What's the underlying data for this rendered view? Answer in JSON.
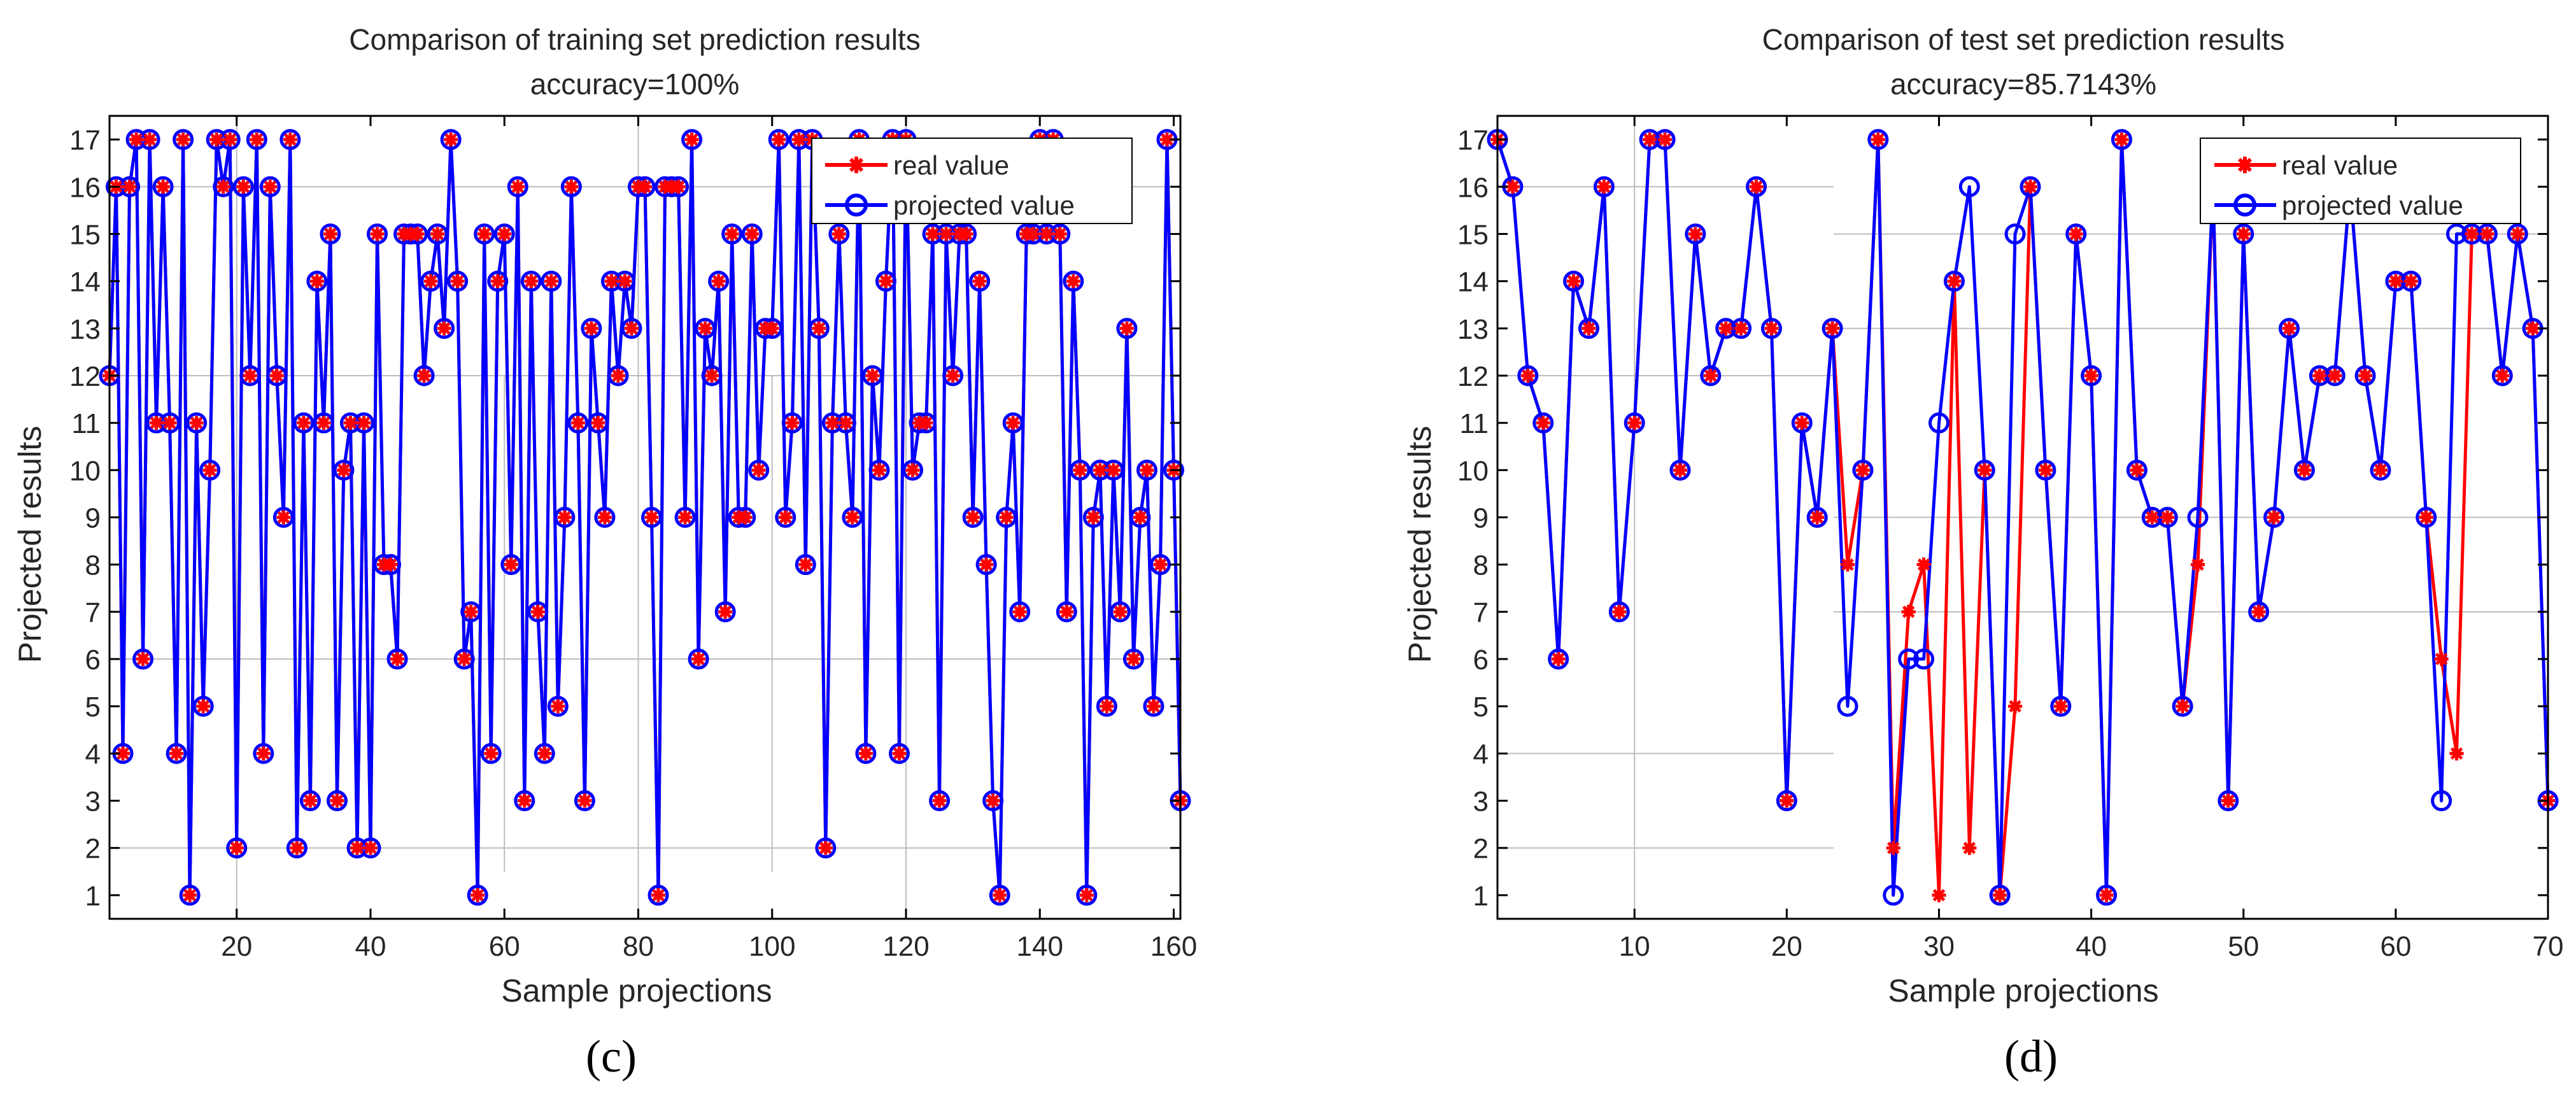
{
  "chart_data": [
    {
      "type": "line",
      "title": "Comparison of training set prediction results",
      "subtitle": "accuracy=100%",
      "xlabel": "Sample projections",
      "ylabel": "Projected results",
      "xlim": [
        1,
        161
      ],
      "ylim": [
        0.5,
        17.5
      ],
      "xticks": [
        20,
        40,
        60,
        80,
        100,
        120,
        140,
        160
      ],
      "yticks": [
        1,
        2,
        3,
        4,
        5,
        6,
        7,
        8,
        9,
        10,
        11,
        12,
        13,
        14,
        15,
        16,
        17
      ],
      "grid": true,
      "legend": [
        "real value",
        "projected value"
      ],
      "legend_location": "top-right",
      "panel_label": "(c)",
      "series": [
        {
          "name": "real value",
          "color": "#ff0000",
          "marker": "asterisk",
          "values": [
            12,
            16,
            4,
            16,
            17,
            6,
            17,
            11,
            16,
            11,
            4,
            17,
            1,
            11,
            5,
            10,
            17,
            16,
            17,
            2,
            16,
            12,
            17,
            4,
            16,
            12,
            9,
            17,
            2,
            11,
            3,
            14,
            11,
            15,
            3,
            10,
            11,
            2,
            11,
            2,
            15,
            8,
            8,
            6,
            15,
            15,
            15,
            12,
            14,
            15,
            13,
            17,
            14,
            6,
            7,
            1,
            15,
            4,
            14,
            15,
            8,
            16,
            3,
            14,
            7,
            4,
            14,
            5,
            9,
            16,
            11,
            3,
            13,
            11,
            9,
            14,
            12,
            14,
            13,
            16,
            16,
            9,
            1,
            16,
            16,
            16,
            9,
            17,
            6,
            13,
            12,
            14,
            7,
            15,
            9,
            9,
            15,
            10,
            13,
            13,
            17,
            9,
            11,
            17,
            8,
            17,
            13,
            2,
            11,
            15,
            11,
            9,
            17,
            4,
            12,
            10,
            14,
            17,
            4,
            17,
            10,
            11,
            11,
            15,
            3,
            15,
            12,
            15,
            15,
            9,
            14,
            8,
            3,
            1,
            9,
            11,
            7,
            15,
            15,
            17,
            15,
            17,
            15,
            7,
            14,
            10,
            1,
            9,
            10,
            5,
            10,
            7,
            13,
            6,
            9,
            10,
            5,
            8,
            17,
            10,
            3
          ]
        },
        {
          "name": "projected value",
          "color": "#0000ff",
          "marker": "circle",
          "values": [
            12,
            16,
            4,
            16,
            17,
            6,
            17,
            11,
            16,
            11,
            4,
            17,
            1,
            11,
            5,
            10,
            17,
            16,
            17,
            2,
            16,
            12,
            17,
            4,
            16,
            12,
            9,
            17,
            2,
            11,
            3,
            14,
            11,
            15,
            3,
            10,
            11,
            2,
            11,
            2,
            15,
            8,
            8,
            6,
            15,
            15,
            15,
            12,
            14,
            15,
            13,
            17,
            14,
            6,
            7,
            1,
            15,
            4,
            14,
            15,
            8,
            16,
            3,
            14,
            7,
            4,
            14,
            5,
            9,
            16,
            11,
            3,
            13,
            11,
            9,
            14,
            12,
            14,
            13,
            16,
            16,
            9,
            1,
            16,
            16,
            16,
            9,
            17,
            6,
            13,
            12,
            14,
            7,
            15,
            9,
            9,
            15,
            10,
            13,
            13,
            17,
            9,
            11,
            17,
            8,
            17,
            13,
            2,
            11,
            15,
            11,
            9,
            17,
            4,
            12,
            10,
            14,
            17,
            4,
            17,
            10,
            11,
            11,
            15,
            3,
            15,
            12,
            15,
            15,
            9,
            14,
            8,
            3,
            1,
            9,
            11,
            7,
            15,
            15,
            17,
            15,
            17,
            15,
            7,
            14,
            10,
            1,
            9,
            10,
            5,
            10,
            7,
            13,
            6,
            9,
            10,
            5,
            8,
            17,
            10,
            3
          ]
        }
      ]
    },
    {
      "type": "line",
      "title": "Comparison of test set prediction results",
      "subtitle": "accuracy=85.7143%",
      "xlabel": "Sample projections",
      "ylabel": "Projected results",
      "xlim": [
        1,
        70
      ],
      "ylim": [
        0.5,
        17.5
      ],
      "xticks": [
        10,
        20,
        30,
        40,
        50,
        60,
        70
      ],
      "yticks": [
        1,
        2,
        3,
        4,
        5,
        6,
        7,
        8,
        9,
        10,
        11,
        12,
        13,
        14,
        15,
        16,
        17
      ],
      "grid": true,
      "legend": [
        "real value",
        "projected value"
      ],
      "legend_location": "top-right",
      "panel_label": "(d)",
      "series": [
        {
          "name": "real value",
          "color": "#ff0000",
          "marker": "asterisk",
          "values": [
            17,
            16,
            12,
            11,
            6,
            14,
            13,
            16,
            7,
            11,
            17,
            17,
            10,
            15,
            12,
            13,
            13,
            16,
            13,
            3,
            11,
            9,
            13,
            8,
            10,
            17,
            2,
            7,
            8,
            1,
            14,
            2,
            10,
            1,
            5,
            16,
            10,
            5,
            15,
            12,
            1,
            17,
            10,
            9,
            9,
            5,
            8,
            16,
            3,
            15,
            7,
            9,
            13,
            10,
            12,
            12,
            16,
            12,
            10,
            14,
            14,
            9,
            6,
            4,
            15,
            15,
            12,
            15,
            13,
            3
          ]
        },
        {
          "name": "projected value",
          "color": "#0000ff",
          "marker": "circle",
          "values": [
            17,
            16,
            12,
            11,
            6,
            14,
            13,
            16,
            7,
            11,
            17,
            17,
            10,
            15,
            12,
            13,
            13,
            16,
            13,
            3,
            11,
            9,
            13,
            5,
            10,
            17,
            1,
            6,
            6,
            11,
            14,
            16,
            10,
            1,
            15,
            16,
            10,
            5,
            15,
            12,
            1,
            17,
            10,
            9,
            9,
            5,
            9,
            16,
            3,
            15,
            7,
            9,
            13,
            10,
            12,
            12,
            16,
            12,
            10,
            14,
            14,
            9,
            3,
            15,
            15,
            15,
            12,
            15,
            13,
            3
          ]
        }
      ]
    }
  ]
}
